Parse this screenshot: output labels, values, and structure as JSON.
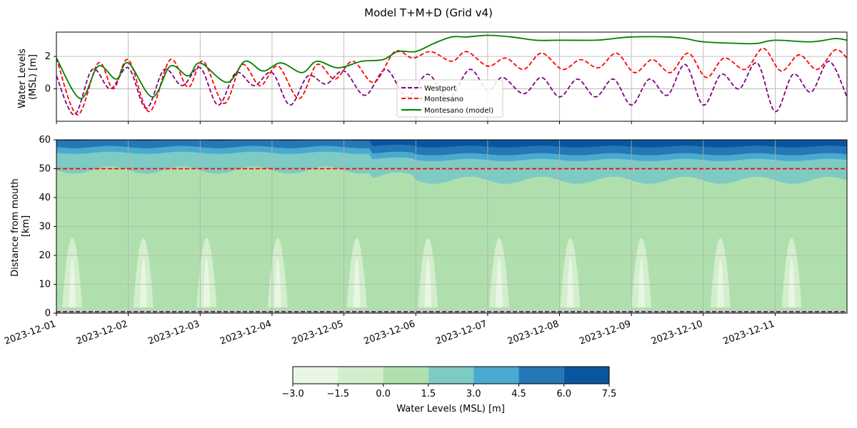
{
  "title": "Model T+M+D (Grid v4)",
  "top_panel": {
    "ylabel_line1": "Water Levels",
    "ylabel_line2": "(MSL) [m]"
  },
  "bottom_panel": {
    "ylabel_line1": "Distance from mouth",
    "ylabel_line2": "[km]"
  },
  "colorbar": {
    "label": "Water Levels (MSL) [m]",
    "levels": [
      -3.0,
      -1.5,
      0.0,
      1.5,
      3.0,
      4.5,
      6.0,
      7.5
    ],
    "tick_labels": [
      "−3.0",
      "−1.5",
      "0.0",
      "1.5",
      "3.0",
      "4.5",
      "6.0",
      "7.5"
    ],
    "colors": [
      "#e8f6e3",
      "#d3eecd",
      "#b0dfae",
      "#7ecbc4",
      "#4aa9d0",
      "#2378b5",
      "#0b559f"
    ]
  },
  "chart_data": [
    {
      "type": "line",
      "x_type": "date",
      "xlim": [
        "2023-12-01T00:00",
        "2023-12-11T23:59"
      ],
      "ylim": [
        -2,
        3.5
      ],
      "yticks": [
        0,
        2
      ],
      "xticks": [
        "2023-12-01",
        "2023-12-02",
        "2023-12-03",
        "2023-12-04",
        "2023-12-05",
        "2023-12-06",
        "2023-12-07",
        "2023-12-08",
        "2023-12-09",
        "2023-12-10",
        "2023-12-11"
      ],
      "grid": true,
      "legend_position": "lower-center",
      "ylabel": "Water Levels (MSL) [m]",
      "series": [
        {
          "name": "Westport",
          "color": "#800080",
          "style": "dashed",
          "x": [
            "2023-12-01T00:00",
            "2023-12-01T06:00",
            "2023-12-01T12:00",
            "2023-12-01T18:00",
            "2023-12-02T00:00",
            "2023-12-02T06:00",
            "2023-12-02T12:00",
            "2023-12-02T18:00",
            "2023-12-03T00:00",
            "2023-12-03T06:00",
            "2023-12-03T12:00",
            "2023-12-03T18:00",
            "2023-12-04T00:00",
            "2023-12-04T06:00",
            "2023-12-04T12:00",
            "2023-12-04T18:00",
            "2023-12-05T00:00",
            "2023-12-05T07:00",
            "2023-12-05T14:00",
            "2023-12-05T21:00",
            "2023-12-06T04:00",
            "2023-12-06T11:00",
            "2023-12-06T18:00",
            "2023-12-07T00:00",
            "2023-12-07T05:00",
            "2023-12-07T12:00",
            "2023-12-07T18:00",
            "2023-12-08T00:00",
            "2023-12-08T06:00",
            "2023-12-08T12:00",
            "2023-12-08T18:00",
            "2023-12-09T00:00",
            "2023-12-09T06:00",
            "2023-12-09T12:00",
            "2023-12-09T18:00",
            "2023-12-10T00:00",
            "2023-12-10T06:00",
            "2023-12-10T12:00",
            "2023-12-10T18:00",
            "2023-12-11T00:00",
            "2023-12-11T06:00",
            "2023-12-11T12:00",
            "2023-12-11T18:00",
            "2023-12-11T23:59"
          ],
          "y": [
            0.8,
            -1.6,
            1.2,
            0.0,
            1.3,
            -1.2,
            1.2,
            0.2,
            1.3,
            -1.0,
            1.0,
            0.2,
            1.0,
            -1.0,
            0.8,
            0.3,
            1.1,
            -0.4,
            1.2,
            -0.5,
            0.9,
            -0.6,
            1.2,
            -0.1,
            0.7,
            -0.3,
            0.7,
            -0.5,
            0.6,
            -0.5,
            0.6,
            -1.0,
            0.6,
            -0.4,
            1.5,
            -1.0,
            0.9,
            0.0,
            1.6,
            -1.4,
            0.9,
            -0.2,
            1.7,
            -0.5
          ]
        },
        {
          "name": "Montesano",
          "color": "#ff0000",
          "style": "dashed",
          "x": [
            "2023-12-01T00:00",
            "2023-12-01T07:00",
            "2023-12-01T14:00",
            "2023-12-01T19:00",
            "2023-12-02T00:00",
            "2023-12-02T07:00",
            "2023-12-02T14:00",
            "2023-12-02T20:00",
            "2023-12-03T01:00",
            "2023-12-03T08:00",
            "2023-12-03T14:00",
            "2023-12-03T20:00",
            "2023-12-04T02:00",
            "2023-12-04T09:00",
            "2023-12-04T15:00",
            "2023-12-04T21:00",
            "2023-12-05T03:00",
            "2023-12-05T10:00",
            "2023-12-05T17:00",
            "2023-12-05T23:00",
            "2023-12-06T05:00",
            "2023-12-06T12:00",
            "2023-12-06T17:00",
            "2023-12-07T00:00",
            "2023-12-07T06:00",
            "2023-12-07T12:00",
            "2023-12-07T18:00",
            "2023-12-08T01:00",
            "2023-12-08T07:00",
            "2023-12-08T13:00",
            "2023-12-08T19:00",
            "2023-12-09T01:00",
            "2023-12-09T07:00",
            "2023-12-09T13:00",
            "2023-12-09T19:00",
            "2023-12-10T01:00",
            "2023-12-10T07:00",
            "2023-12-10T14:00",
            "2023-12-10T20:00",
            "2023-12-11T02:00",
            "2023-12-11T08:00",
            "2023-12-11T14:00",
            "2023-12-11T20:00",
            "2023-12-11T23:59"
          ],
          "y": [
            1.9,
            -1.6,
            1.6,
            0.0,
            1.8,
            -1.4,
            1.8,
            0.1,
            1.7,
            -0.9,
            1.5,
            0.2,
            1.4,
            -0.6,
            1.5,
            0.6,
            1.7,
            0.4,
            2.3,
            1.9,
            2.3,
            1.7,
            2.3,
            1.4,
            1.9,
            1.2,
            2.2,
            1.2,
            1.8,
            1.3,
            2.2,
            1.0,
            1.8,
            1.0,
            2.2,
            0.7,
            1.9,
            1.2,
            2.5,
            1.1,
            2.1,
            1.2,
            2.4,
            1.9
          ]
        },
        {
          "name": "Montesano (model)",
          "color": "#008000",
          "style": "solid",
          "x": [
            "2023-12-01T00:00",
            "2023-12-01T08:00",
            "2023-12-01T14:00",
            "2023-12-01T20:00",
            "2023-12-02T00:00",
            "2023-12-02T08:00",
            "2023-12-02T14:00",
            "2023-12-02T20:00",
            "2023-12-03T00:00",
            "2023-12-03T09:00",
            "2023-12-03T15:00",
            "2023-12-03T21:00",
            "2023-12-04T03:00",
            "2023-12-04T10:00",
            "2023-12-04T15:00",
            "2023-12-04T22:00",
            "2023-12-05T06:00",
            "2023-12-05T13:00",
            "2023-12-05T18:00",
            "2023-12-06T00:00",
            "2023-12-06T06:00",
            "2023-12-06T12:00",
            "2023-12-06T17:00",
            "2023-12-07T00:00",
            "2023-12-07T08:00",
            "2023-12-07T16:00",
            "2023-12-08T00:00",
            "2023-12-08T12:00",
            "2023-12-08T18:00",
            "2023-12-09T00:00",
            "2023-12-09T12:00",
            "2023-12-09T18:00",
            "2023-12-10T00:00",
            "2023-12-10T12:00",
            "2023-12-10T18:00",
            "2023-12-11T00:00",
            "2023-12-11T12:00",
            "2023-12-11T20:00",
            "2023-12-11T23:59"
          ],
          "y": [
            1.9,
            -0.6,
            1.4,
            0.6,
            1.6,
            -0.5,
            1.4,
            0.8,
            1.6,
            0.4,
            1.7,
            1.1,
            1.6,
            1.0,
            1.7,
            1.3,
            1.7,
            1.8,
            2.3,
            2.3,
            2.8,
            3.2,
            3.2,
            3.3,
            3.2,
            3.0,
            3.0,
            3.0,
            3.1,
            3.2,
            3.2,
            3.1,
            2.9,
            2.8,
            2.8,
            3.0,
            2.9,
            3.1,
            3.0
          ]
        }
      ]
    },
    {
      "type": "heatmap",
      "x_type": "date",
      "xlim": [
        "2023-12-01T00:00",
        "2023-12-11T23:59"
      ],
      "ylim": [
        0,
        60
      ],
      "yticks": [
        0,
        10,
        20,
        30,
        40,
        50,
        60
      ],
      "xticks": [
        "2023-12-01",
        "2023-12-02",
        "2023-12-03",
        "2023-12-04",
        "2023-12-05",
        "2023-12-06",
        "2023-12-07",
        "2023-12-08",
        "2023-12-09",
        "2023-12-10",
        "2023-12-11"
      ],
      "xlabel": "",
      "ylabel": "Distance from mouth [km]",
      "grid": true,
      "reference_lines": [
        {
          "y": 50,
          "color": "#ff0000",
          "style": "dashed"
        },
        {
          "y": 0.5,
          "color": "#800080",
          "style": "dashed"
        }
      ],
      "contour_levels": [
        -3.0,
        -1.5,
        0.0,
        1.5,
        3.0,
        4.5,
        6.0,
        7.5
      ],
      "band_boundaries_km": [
        {
          "level": 1.5,
          "approx_km_range": [
            46,
            52
          ]
        },
        {
          "level": 3.0,
          "approx_km_range": [
            53,
            55
          ]
        },
        {
          "level": 4.5,
          "approx_km_range": [
            55,
            57
          ]
        },
        {
          "level": 6.0,
          "approx_km_range": [
            57,
            59
          ]
        }
      ]
    }
  ]
}
